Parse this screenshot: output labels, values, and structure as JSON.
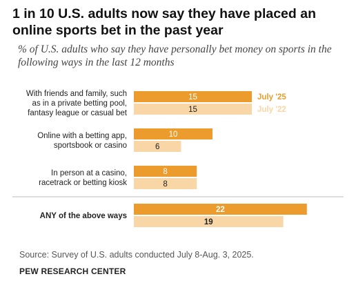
{
  "header": {
    "title": "1 in 10 U.S. adults now say they have placed an online sports bet in the past year",
    "subtitle": "% of U.S. adults who say they have personally bet money on sports in the following ways in the last 12 months"
  },
  "chart_data": {
    "type": "bar",
    "orientation": "horizontal",
    "categories": [
      [
        "With friends and family, such",
        "as in a private betting pool,",
        "fantasy league or casual bet"
      ],
      [
        "Online with a betting app,",
        "sportsbook or casino"
      ],
      [
        "In person at a casino,",
        "racetrack or betting kiosk"
      ],
      [
        "ANY of the above ways"
      ]
    ],
    "series": [
      {
        "name": "July '25",
        "color": "#eb9c2c",
        "values": [
          15,
          10,
          8,
          22
        ]
      },
      {
        "name": "July '22",
        "color": "#f8d6a6",
        "values": [
          15,
          6,
          8,
          19
        ]
      }
    ],
    "legend_placement": "right of first category bars",
    "grid": false,
    "bold_categories": [
      3
    ]
  },
  "footer": {
    "source": "Source: Survey of U.S. adults conducted July 8-Aug. 3, 2025.",
    "brand": "PEW RESEARCH CENTER"
  }
}
